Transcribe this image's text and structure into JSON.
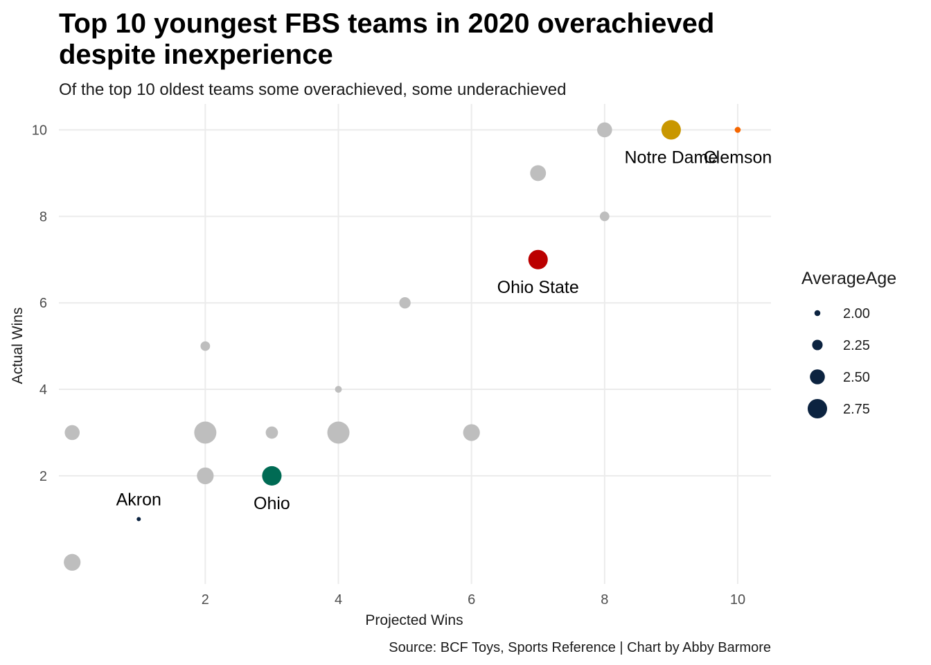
{
  "chart_data": {
    "type": "scatter",
    "title_lines": [
      "Top 10 youngest FBS teams in 2020 overachieved",
      "despite inexperience"
    ],
    "subtitle": "Of the top 10 oldest teams some overachieved, some underachieved",
    "xlabel": "Projected Wins",
    "ylabel": "Actual Wins",
    "caption": "Source: BCF Toys, Sports Reference | Chart by Abby Barmore",
    "xlim": [
      -0.2,
      10.5
    ],
    "ylim": [
      -0.5,
      10.6
    ],
    "x_ticks": [
      "2",
      "4",
      "6",
      "8",
      "10"
    ],
    "y_ticks": [
      "2",
      "4",
      "6",
      "8",
      "10"
    ],
    "grid": true,
    "size_legend": {
      "title": "AverageAge",
      "placement": "right",
      "color": "#0c2340",
      "values": [
        "2.00",
        "2.25",
        "2.50",
        "2.75"
      ]
    },
    "points": [
      {
        "x": 0,
        "y": 3,
        "size": 2.5,
        "color": "#bebebe"
      },
      {
        "x": 0,
        "y": 0,
        "size": 2.6,
        "color": "#bebebe"
      },
      {
        "x": 1,
        "y": 1,
        "size": 1.9,
        "color": "#0c2340",
        "label": "Akron"
      },
      {
        "x": 2,
        "y": 5,
        "size": 2.2,
        "color": "#bebebe"
      },
      {
        "x": 2,
        "y": 3,
        "size": 2.9,
        "color": "#bebebe"
      },
      {
        "x": 2,
        "y": 2,
        "size": 2.6,
        "color": "#bebebe"
      },
      {
        "x": 3,
        "y": 3,
        "size": 2.35,
        "color": "#bebebe"
      },
      {
        "x": 3,
        "y": 2,
        "size": 2.75,
        "color": "#006b54",
        "label": "Ohio"
      },
      {
        "x": 4,
        "y": 4,
        "size": 2.05,
        "color": "#bebebe"
      },
      {
        "x": 4,
        "y": 3,
        "size": 2.9,
        "color": "#bebebe"
      },
      {
        "x": 5,
        "y": 6,
        "size": 2.3,
        "color": "#bebebe"
      },
      {
        "x": 6,
        "y": 3,
        "size": 2.6,
        "color": "#bebebe"
      },
      {
        "x": 7,
        "y": 9,
        "size": 2.55,
        "color": "#bebebe"
      },
      {
        "x": 7,
        "y": 7,
        "size": 2.75,
        "color": "#bb0000",
        "label": "Ohio State"
      },
      {
        "x": 8,
        "y": 10,
        "size": 2.5,
        "color": "#bebebe"
      },
      {
        "x": 8,
        "y": 8,
        "size": 2.2,
        "color": "#bebebe"
      },
      {
        "x": 9,
        "y": 10,
        "size": 2.75,
        "color": "#c99700",
        "label": "Notre Dame"
      },
      {
        "x": 10,
        "y": 10,
        "size": 2.0,
        "color": "#f56600",
        "label": "Clemson"
      }
    ]
  }
}
